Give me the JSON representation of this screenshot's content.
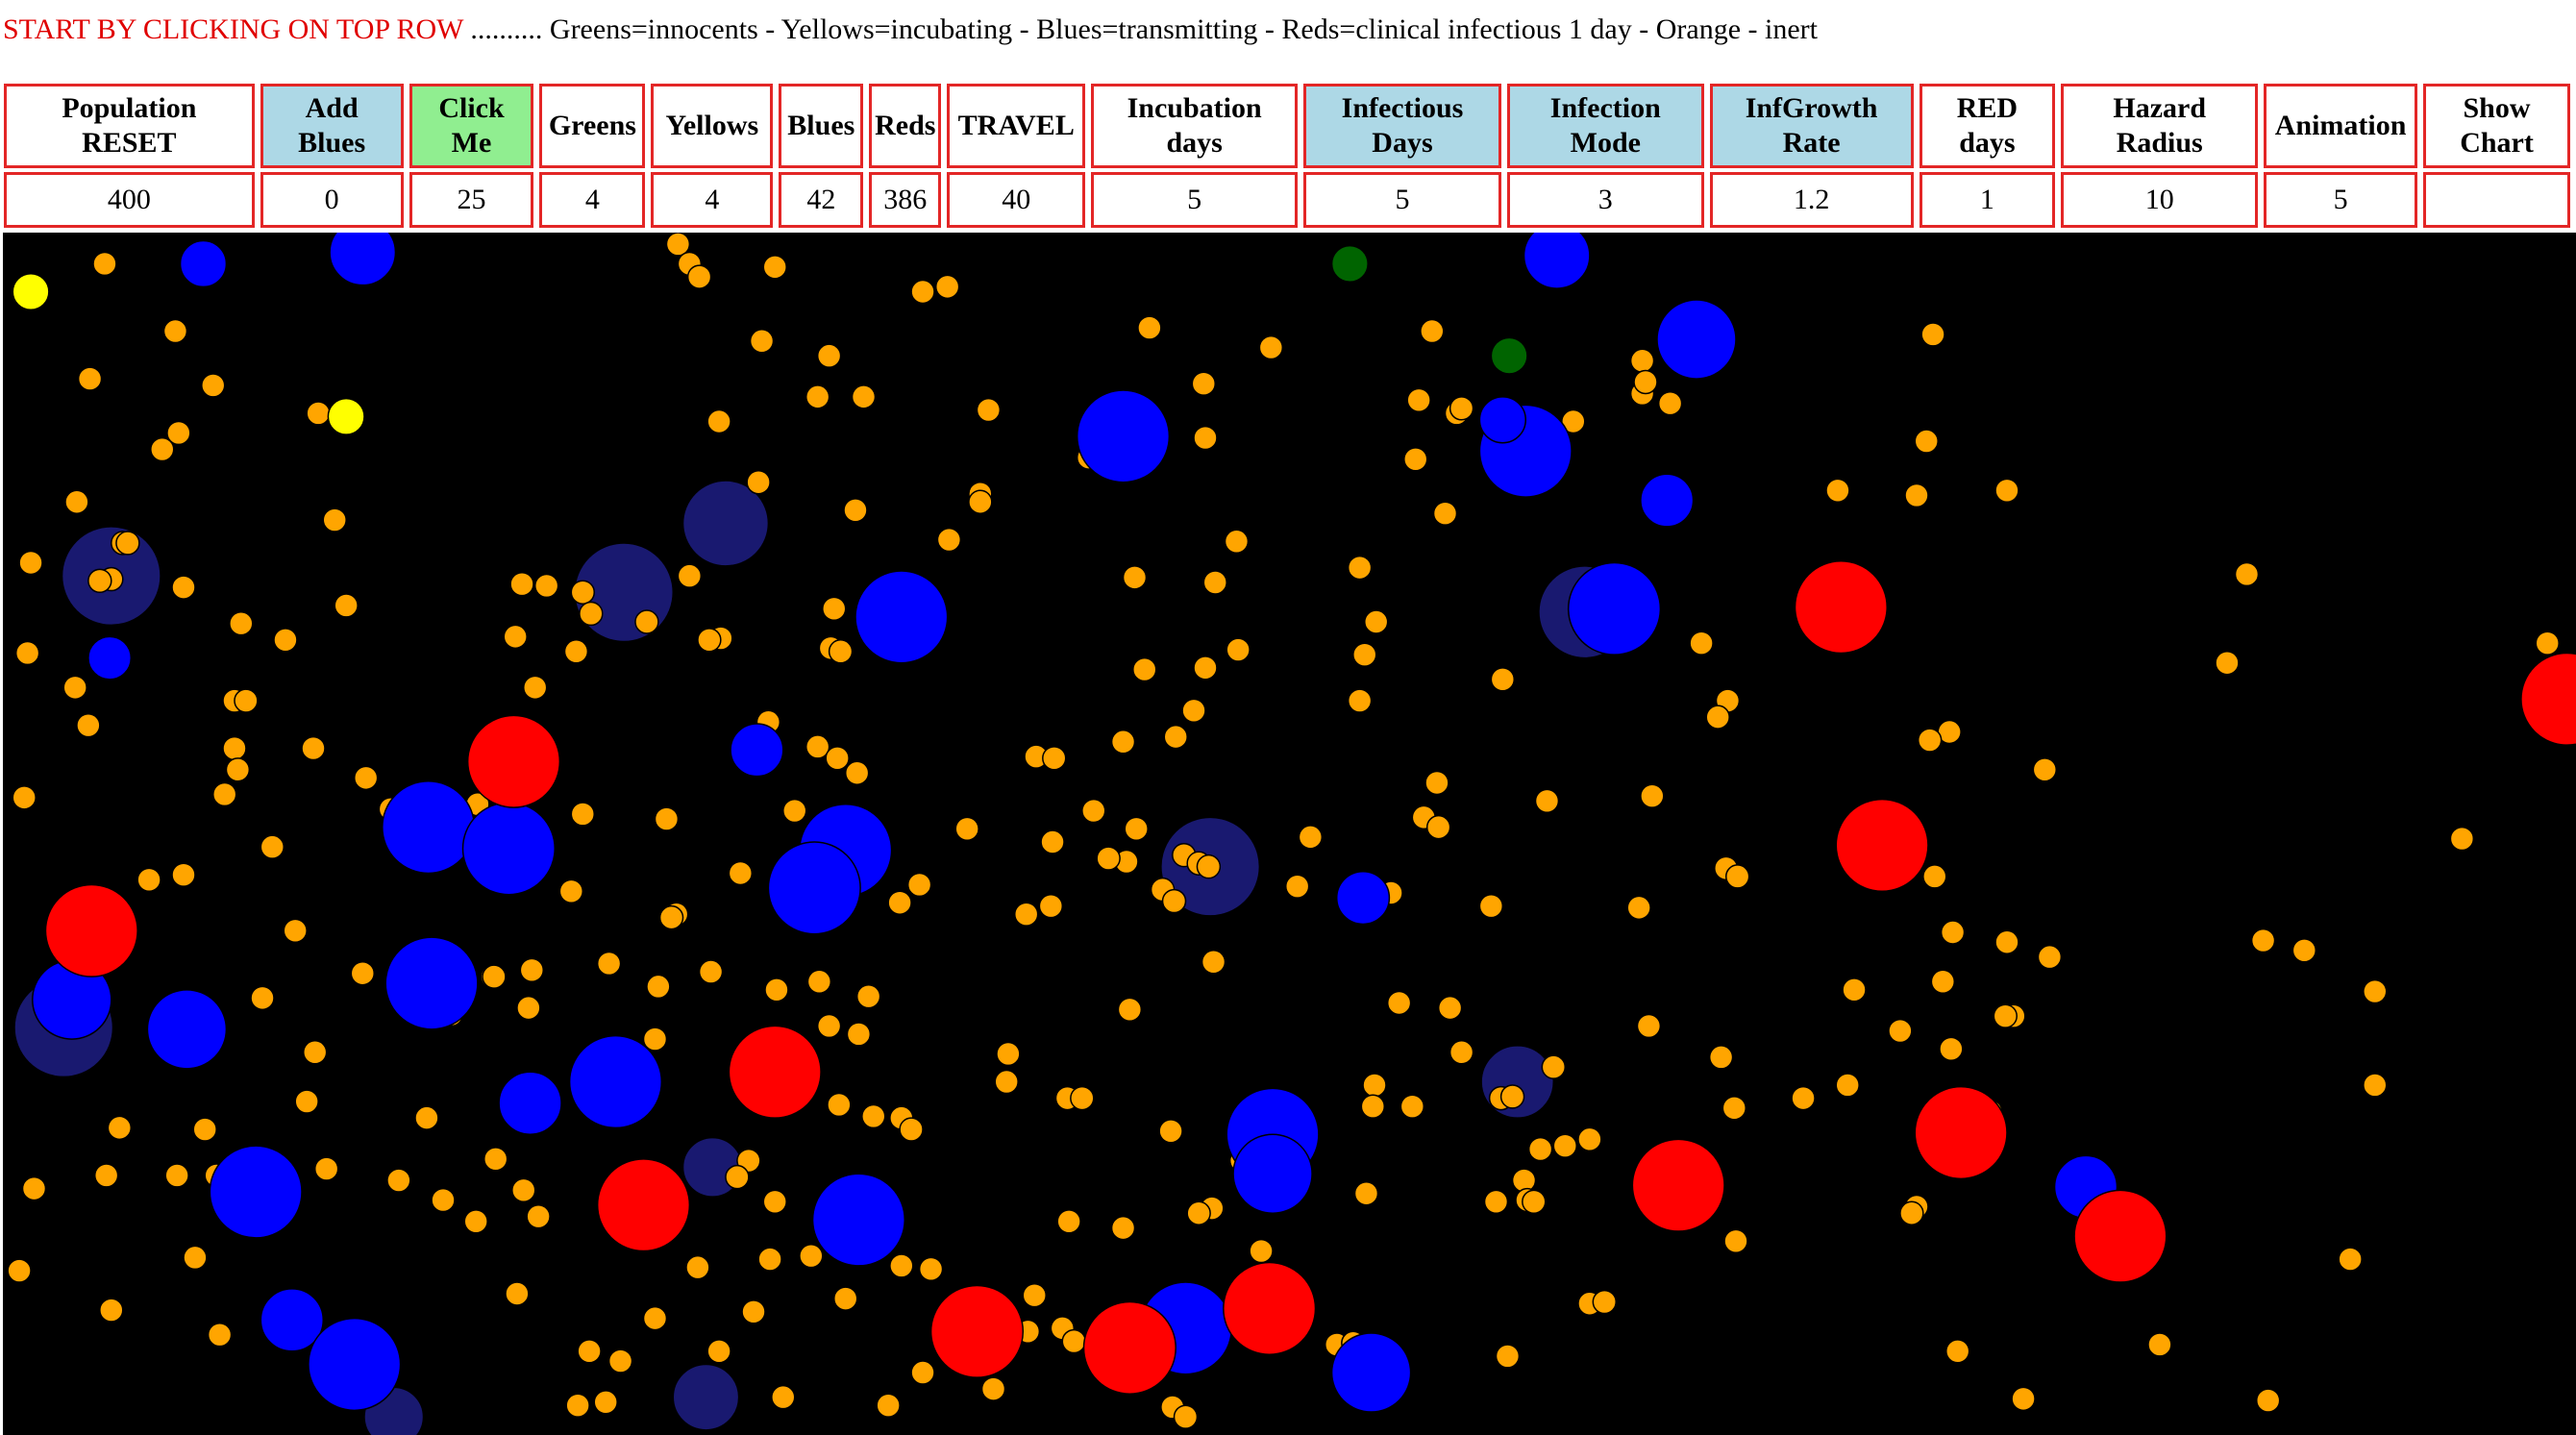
{
  "banner": {
    "lead": "START BY CLICKING ON TOP ROW",
    "rest": ".......... Greens=innocents - Yellows=incubating - Blues=transmitting - Reds=clinical infectious 1 day - Orange - inert"
  },
  "controls": [
    {
      "l1": "Population",
      "l2": "RESET",
      "value": "400"
    },
    {
      "l1": "Add",
      "l2": "Blues",
      "value": "0"
    },
    {
      "l1": "Click",
      "l2": "Me",
      "value": "25"
    },
    {
      "l1": "Greens",
      "l2": "",
      "value": "4"
    },
    {
      "l1": "Yellows",
      "l2": "",
      "value": "4"
    },
    {
      "l1": "Blues",
      "l2": "",
      "value": "42"
    },
    {
      "l1": "Reds",
      "l2": "",
      "value": "386"
    },
    {
      "l1": "TRAVEL",
      "l2": "",
      "value": "40"
    },
    {
      "l1": "Incubation",
      "l2": "days",
      "value": "5"
    },
    {
      "l1": "Infectious",
      "l2": "Days",
      "value": "5"
    },
    {
      "l1": "Infection",
      "l2": "Mode",
      "value": "3"
    },
    {
      "l1": "InfGrowth",
      "l2": "Rate",
      "value": "1.2"
    },
    {
      "l1": "RED",
      "l2": "days",
      "value": "1"
    },
    {
      "l1": "Hazard",
      "l2": "Radius",
      "value": "10"
    },
    {
      "l1": "Animation",
      "l2": "",
      "value": "5"
    },
    {
      "l1": "Show",
      "l2": "Chart",
      "value": ""
    }
  ],
  "colors": {
    "green": "#006400",
    "yellow": "#ffff00",
    "blue": "#0000ff",
    "red": "#ff0000",
    "orange": "#ffa500",
    "shadow": "#191970",
    "bg": "#000000"
  }
}
